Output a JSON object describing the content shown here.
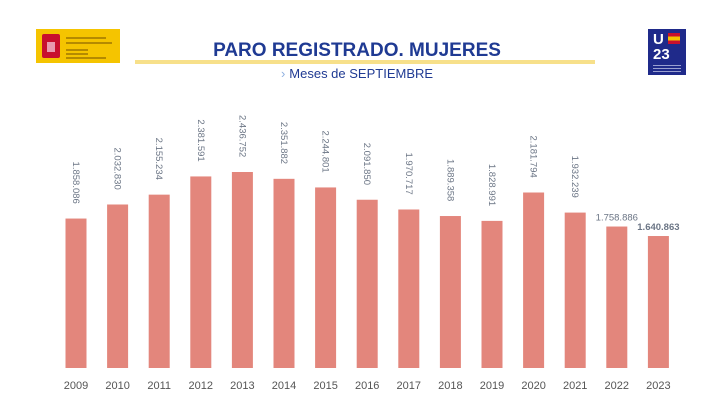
{
  "header": {
    "title": "PARO REGISTRADO. MUJERES",
    "subtitle": "Meses de SEPTIEMBRE",
    "logo_left_text": "VICEPRESIDENCIA SEGUNDA DEL GOBIERNO MINISTERIO DE TRABAJO Y ECONOMÍA SOCIAL",
    "logo_right_text": "UE 23"
  },
  "chart_data": {
    "type": "bar",
    "title": "PARO REGISTRADO. MUJERES",
    "subtitle": "Meses de SEPTIEMBRE",
    "categories": [
      "2009",
      "2010",
      "2011",
      "2012",
      "2013",
      "2014",
      "2015",
      "2016",
      "2017",
      "2018",
      "2019",
      "2020",
      "2021",
      "2022",
      "2023"
    ],
    "values": [
      1858086,
      2032830,
      2155234,
      2381591,
      2436752,
      2351882,
      2244801,
      2091850,
      1970717,
      1889358,
      1828991,
      2181794,
      1932239,
      1758886,
      1640863
    ],
    "labels": [
      "1.858.086",
      "2.032.830",
      "2.155.234",
      "2.381.591",
      "2.436.752",
      "2.351.882",
      "2.244.801",
      "2.091.850",
      "1.970.717",
      "1.889.358",
      "1.828.991",
      "2.181.794",
      "1.932.239",
      "1.758.886",
      "1.640.863"
    ],
    "ylim": [
      0,
      2436752
    ],
    "grid": false,
    "bar_color": "#e3867c",
    "label_color": "#6b7585"
  }
}
